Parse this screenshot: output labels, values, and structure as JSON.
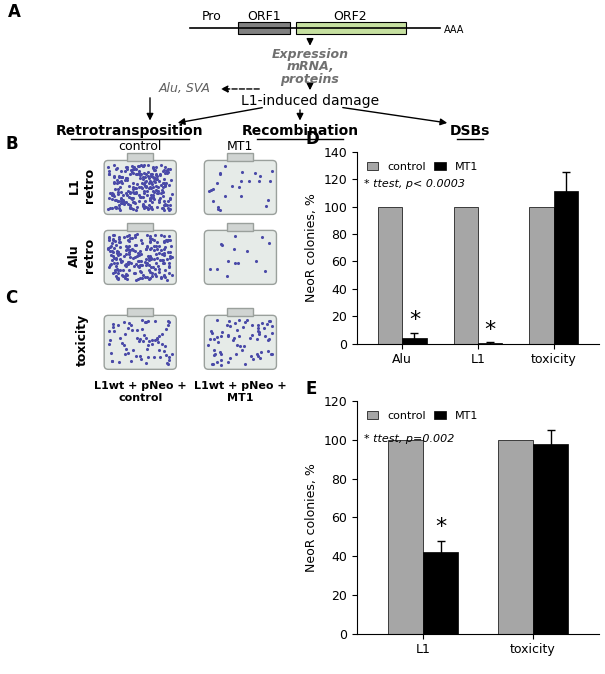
{
  "diagram": {
    "label": "A",
    "promoter": "Pro",
    "orf1": "ORF1",
    "orf2": "ORF2",
    "polya": "AAA",
    "expression": "Expression\nmRNA,\nproteins",
    "alu_sva": "Alu, SVA",
    "damage": "L1-induced damage",
    "outcomes": [
      "Retrotransposition",
      "Recombination",
      "DSBs"
    ]
  },
  "photos": [
    {
      "label": "B",
      "columns": [
        "control",
        "MT1"
      ],
      "rows": [
        "L1\nretro",
        "Alu\nretro"
      ]
    },
    {
      "label": "C",
      "rows": [
        "toxicity"
      ],
      "captions": [
        "L1wt + pNeo +\ncontrol",
        "L1wt + pNeo +\nMT1"
      ]
    }
  ],
  "chart_data": [
    {
      "type": "bar",
      "label": "D",
      "categories": [
        "Alu",
        "L1",
        "toxicity"
      ],
      "y_label": "NeoR colonies, %",
      "annotation": "* ttest, p< 0.0003",
      "series": [
        {
          "name": "control",
          "color": "#a6a6a6",
          "values": [
            100,
            100,
            100
          ]
        },
        {
          "name": "MT1",
          "color": "#000000",
          "values": [
            4,
            0.5,
            111
          ],
          "errors": [
            4,
            0.5,
            14
          ],
          "significance": [
            "*",
            "*",
            null
          ]
        }
      ],
      "ylim": [
        0,
        140
      ],
      "yticks": [
        0,
        20,
        40,
        60,
        80,
        100,
        120,
        140
      ],
      "legend": "upper left"
    },
    {
      "type": "bar",
      "label": "E",
      "categories": [
        "L1",
        "toxicity"
      ],
      "y_label": "NeoR colonies, %",
      "annotation": "* ttest, p=0.002",
      "series": [
        {
          "name": "control",
          "color": "#a6a6a6",
          "values": [
            100,
            100
          ]
        },
        {
          "name": "MT1",
          "color": "#000000",
          "values": [
            42,
            98
          ],
          "errors": [
            6,
            7
          ],
          "significance": [
            "*",
            null
          ]
        }
      ],
      "ylim": [
        0,
        120
      ],
      "yticks": [
        0,
        20,
        40,
        60,
        80,
        100,
        120
      ],
      "legend": "upper left"
    }
  ]
}
